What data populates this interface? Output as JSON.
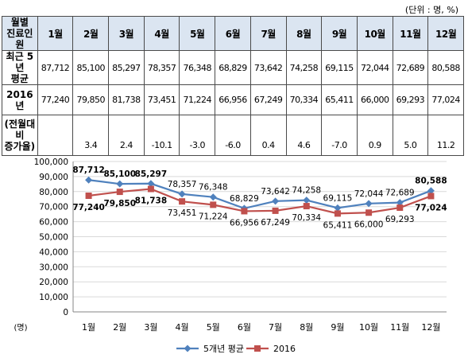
{
  "unit_note": "(단위 : 명, %)",
  "table": {
    "corner": [
      "월별",
      "진료인원"
    ],
    "months": [
      "1월",
      "2월",
      "3월",
      "4월",
      "5월",
      "6월",
      "7월",
      "8월",
      "9월",
      "10월",
      "11월",
      "12월"
    ],
    "rows": [
      {
        "head": [
          "최근 5년",
          "평균"
        ],
        "values": [
          "87,712",
          "85,100",
          "85,297",
          "78,357",
          "76,348",
          "68,829",
          "73,642",
          "74,258",
          "69,115",
          "72,044",
          "72,689",
          "80,588"
        ]
      },
      {
        "head": [
          "2016년"
        ],
        "values": [
          "77,240",
          "79,850",
          "81,738",
          "73,451",
          "71,224",
          "66,956",
          "67,249",
          "70,334",
          "65,411",
          "66,000",
          "69,293",
          "77,024"
        ]
      },
      {
        "head": [
          "(전월대비",
          "증가율)"
        ],
        "values": [
          "",
          "3.4",
          "2.4",
          "-10.1",
          "-3.0",
          "-6.0",
          "0.4",
          "4.6",
          "-7.0",
          "0.9",
          "5.0",
          "11.2"
        ]
      }
    ]
  },
  "chart_data": {
    "type": "line",
    "categories": [
      "1월",
      "2월",
      "3월",
      "4월",
      "5월",
      "6월",
      "7월",
      "8월",
      "9월",
      "10월",
      "11월",
      "12월"
    ],
    "series": [
      {
        "name": "5개년 평균",
        "color": "#4f81bd",
        "marker": "diamond",
        "values": [
          87712,
          85100,
          85297,
          78357,
          76348,
          68829,
          73642,
          74258,
          69115,
          72044,
          72689,
          80588
        ],
        "labels": [
          "87,712",
          "85,100",
          "85,297",
          "78,357",
          "76,348",
          "68,829",
          "73,642",
          "74,258",
          "69,115",
          "72,044",
          "72,689",
          "80,588"
        ]
      },
      {
        "name": "2016",
        "color": "#c0504d",
        "marker": "square",
        "values": [
          77240,
          79850,
          81738,
          73451,
          71224,
          66956,
          67249,
          70334,
          65411,
          66000,
          69293,
          77024
        ],
        "labels": [
          "77,240",
          "79,850",
          "81,738",
          "73,451",
          "71,224",
          "66,956",
          "67,249",
          "70,334",
          "65,411",
          "66,000",
          "69,293",
          "77,024"
        ]
      }
    ],
    "yticks": [
      "0",
      "10,000",
      "20,000",
      "30,000",
      "40,000",
      "50,000",
      "60,000",
      "70,000",
      "80,000",
      "90,000",
      "100,000"
    ],
    "ylim": [
      0,
      100000
    ],
    "ylabel": "(명)",
    "grid": true,
    "legend": "bottom"
  }
}
